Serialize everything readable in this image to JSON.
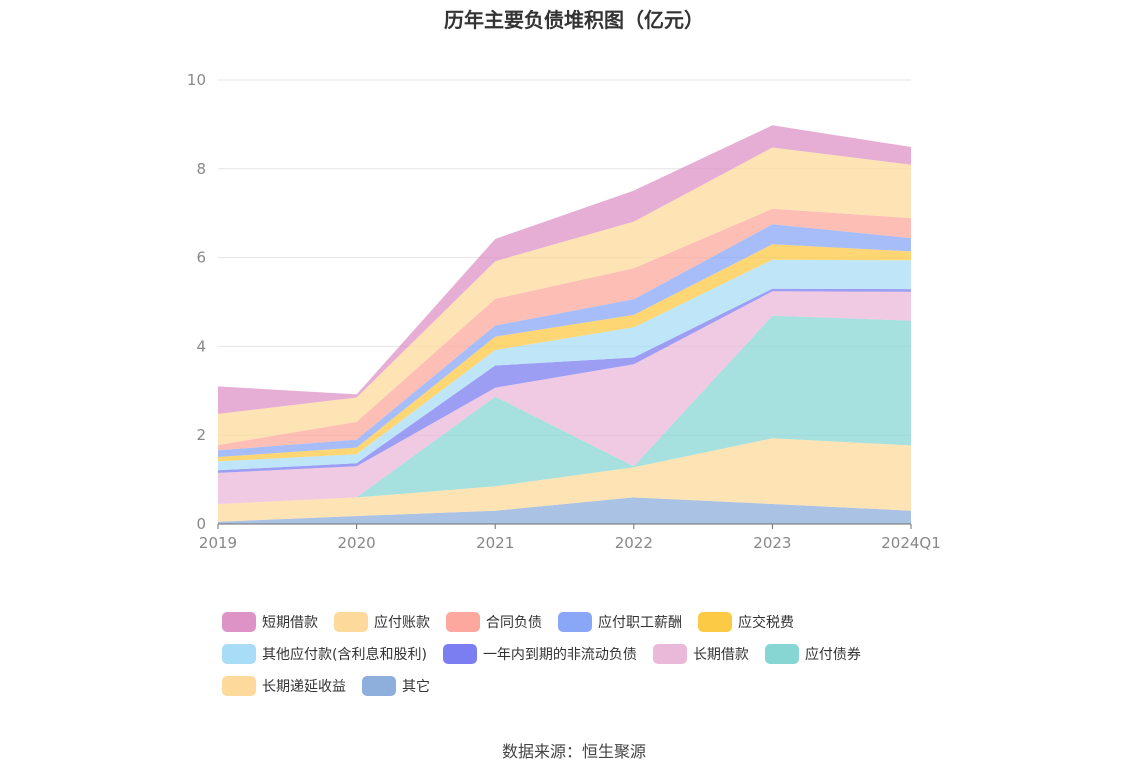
{
  "source_label": "数据来源：恒生聚源",
  "chart_data": {
    "type": "area",
    "stacked": true,
    "title": "历年主要负债堆积图（亿元）",
    "categories": [
      "2019",
      "2020",
      "2021",
      "2022",
      "2023",
      "2024Q1"
    ],
    "ylim": [
      0,
      10
    ],
    "yticks": [
      0,
      2,
      4,
      6,
      8,
      10
    ],
    "grid": true,
    "legend_position": "bottom",
    "series": [
      {
        "name": "其它",
        "color": "#8eaedb",
        "values": [
          0.05,
          0.18,
          0.3,
          0.6,
          0.45,
          0.3
        ]
      },
      {
        "name": "长期递延收益",
        "color": "#fdd99b",
        "values": [
          0.4,
          0.42,
          0.55,
          0.68,
          1.48,
          1.47
        ]
      },
      {
        "name": "应付债券",
        "color": "#88d6d4",
        "values": [
          0.0,
          0.0,
          2.02,
          0.02,
          2.76,
          2.81
        ]
      },
      {
        "name": "长期借款",
        "color": "#eab8d8",
        "values": [
          0.7,
          0.7,
          0.2,
          2.3,
          0.55,
          0.65
        ]
      },
      {
        "name": "一年内到期的非流动负债",
        "color": "#7b7ef0",
        "values": [
          0.06,
          0.07,
          0.5,
          0.15,
          0.06,
          0.06
        ]
      },
      {
        "name": "其他应付款(含利息和股利)",
        "color": "#a9dcf7",
        "values": [
          0.2,
          0.2,
          0.35,
          0.68,
          0.65,
          0.65
        ]
      },
      {
        "name": "应交税费",
        "color": "#fdca45",
        "values": [
          0.1,
          0.15,
          0.3,
          0.28,
          0.35,
          0.2
        ]
      },
      {
        "name": "应付职工薪酬",
        "color": "#8aa7f7",
        "values": [
          0.15,
          0.18,
          0.25,
          0.35,
          0.45,
          0.3
        ]
      },
      {
        "name": "合同负债",
        "color": "#fca89e",
        "values": [
          0.12,
          0.4,
          0.6,
          0.7,
          0.35,
          0.45
        ]
      },
      {
        "name": "应付账款",
        "color": "#fdd99b",
        "values": [
          0.7,
          0.55,
          0.85,
          1.05,
          1.38,
          1.2
        ]
      },
      {
        "name": "短期借款",
        "color": "#de93c6",
        "values": [
          0.62,
          0.07,
          0.5,
          0.7,
          0.5,
          0.4
        ]
      }
    ],
    "legend_order": [
      "短期借款",
      "应付账款",
      "合同负债",
      "应付职工薪酬",
      "应交税费",
      "其他应付款(含利息和股利)",
      "一年内到期的非流动负债",
      "长期借款",
      "应付债券",
      "长期递延收益",
      "其它"
    ]
  }
}
